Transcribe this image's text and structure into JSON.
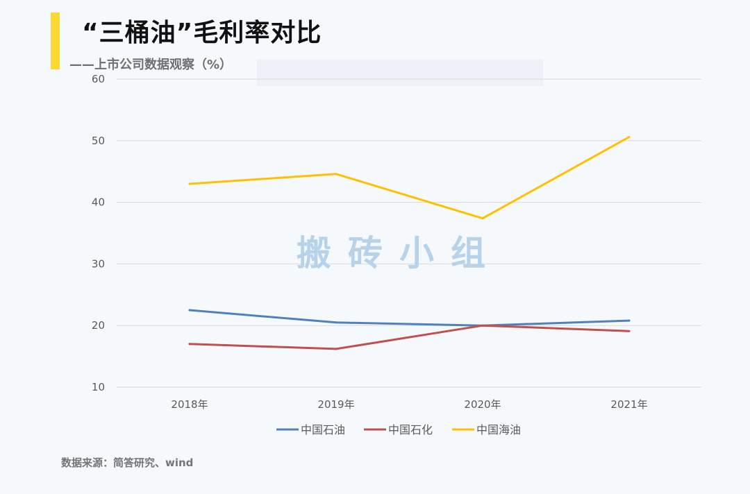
{
  "header": {
    "title": "“三桶油”毛利率对比",
    "subtitle": "——上市公司数据观察（%）"
  },
  "watermark": "搬砖小组",
  "source": "数据来源：简答研究、wind",
  "colors": {
    "accent_bar": "#fdd835",
    "grid": "#d9d9d9",
    "watermark": "#b7d3ea"
  },
  "chart_data": {
    "type": "line",
    "categories": [
      "2018年",
      "2019年",
      "2020年",
      "2021年"
    ],
    "series": [
      {
        "name": "中国石油",
        "color": "#4f81bd",
        "values": [
          22.5,
          20.5,
          20.0,
          20.8
        ]
      },
      {
        "name": "中国石化",
        "color": "#c0504d",
        "values": [
          17.0,
          16.2,
          20.0,
          19.1
        ]
      },
      {
        "name": "中国海油",
        "color": "#ffc000",
        "values": [
          43.0,
          44.6,
          37.4,
          50.6
        ]
      }
    ],
    "ylim": [
      10,
      60
    ],
    "yticks": [
      10,
      20,
      30,
      40,
      50,
      60
    ],
    "grid": true,
    "legend": "bottom"
  }
}
